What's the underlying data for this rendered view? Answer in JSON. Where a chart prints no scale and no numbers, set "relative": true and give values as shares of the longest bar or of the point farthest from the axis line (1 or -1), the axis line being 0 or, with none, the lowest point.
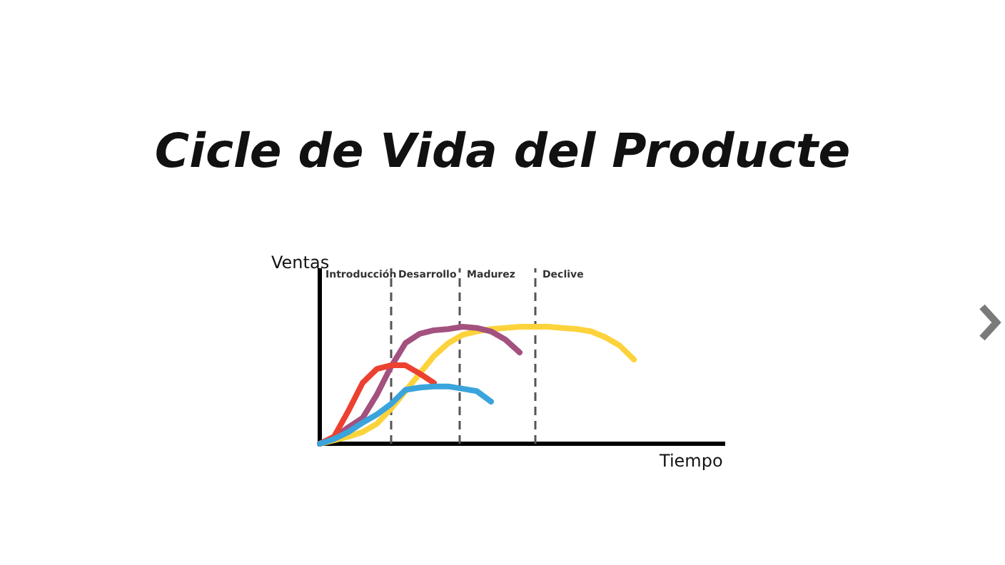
{
  "chart_data": {
    "type": "line",
    "title": "Cicle de Vida del Producte",
    "xlabel": "Tiempo",
    "ylabel": "Ventas",
    "relative": true,
    "marker": "none",
    "line_style": "solid",
    "categories": [
      null,
      null,
      null,
      null,
      null,
      null,
      null,
      null,
      null,
      null,
      null,
      null,
      null,
      null,
      null,
      null,
      null,
      null,
      null,
      null,
      null,
      null,
      null,
      null,
      null,
      null,
      null,
      null,
      null
    ],
    "annotations": [
      "Introducción",
      "Desarrollo",
      "Madurez",
      "Declive"
    ],
    "series": [
      {
        "color": "#fdd33b",
        "values": [
          0,
          0.03,
          0.06,
          0.1,
          0.17,
          0.3,
          0.45,
          0.6,
          0.75,
          0.86,
          0.93,
          0.96,
          0.98,
          0.99,
          1.0,
          1.0,
          1.0,
          0.99,
          0.98,
          0.96,
          0.91,
          0.84,
          0.72,
          null,
          null,
          null,
          null,
          null,
          null
        ]
      },
      {
        "color": "#a3517f",
        "values": [
          0,
          0.05,
          0.14,
          0.22,
          0.42,
          0.66,
          0.86,
          0.94,
          0.97,
          0.98,
          1.0,
          0.99,
          0.96,
          0.89,
          0.78,
          null,
          null,
          null,
          null,
          null,
          null,
          null,
          null,
          null,
          null,
          null,
          null,
          null,
          null
        ]
      },
      {
        "color": "#ec4130",
        "values": [
          0,
          0.06,
          0.28,
          0.52,
          0.64,
          0.67,
          0.67,
          0.6,
          0.52,
          null,
          null,
          null,
          null,
          null,
          null,
          null,
          null,
          null,
          null,
          null,
          null,
          null,
          null,
          null,
          null,
          null,
          null,
          null,
          null
        ]
      },
      {
        "color": "#3aa4dc",
        "values": [
          0,
          0.04,
          0.1,
          0.18,
          0.25,
          0.34,
          0.46,
          0.48,
          0.49,
          0.49,
          0.47,
          0.45,
          0.36,
          null,
          null,
          null,
          null,
          null,
          null,
          null,
          null,
          null,
          null,
          null,
          null,
          null,
          null,
          null,
          null
        ]
      }
    ]
  }
}
